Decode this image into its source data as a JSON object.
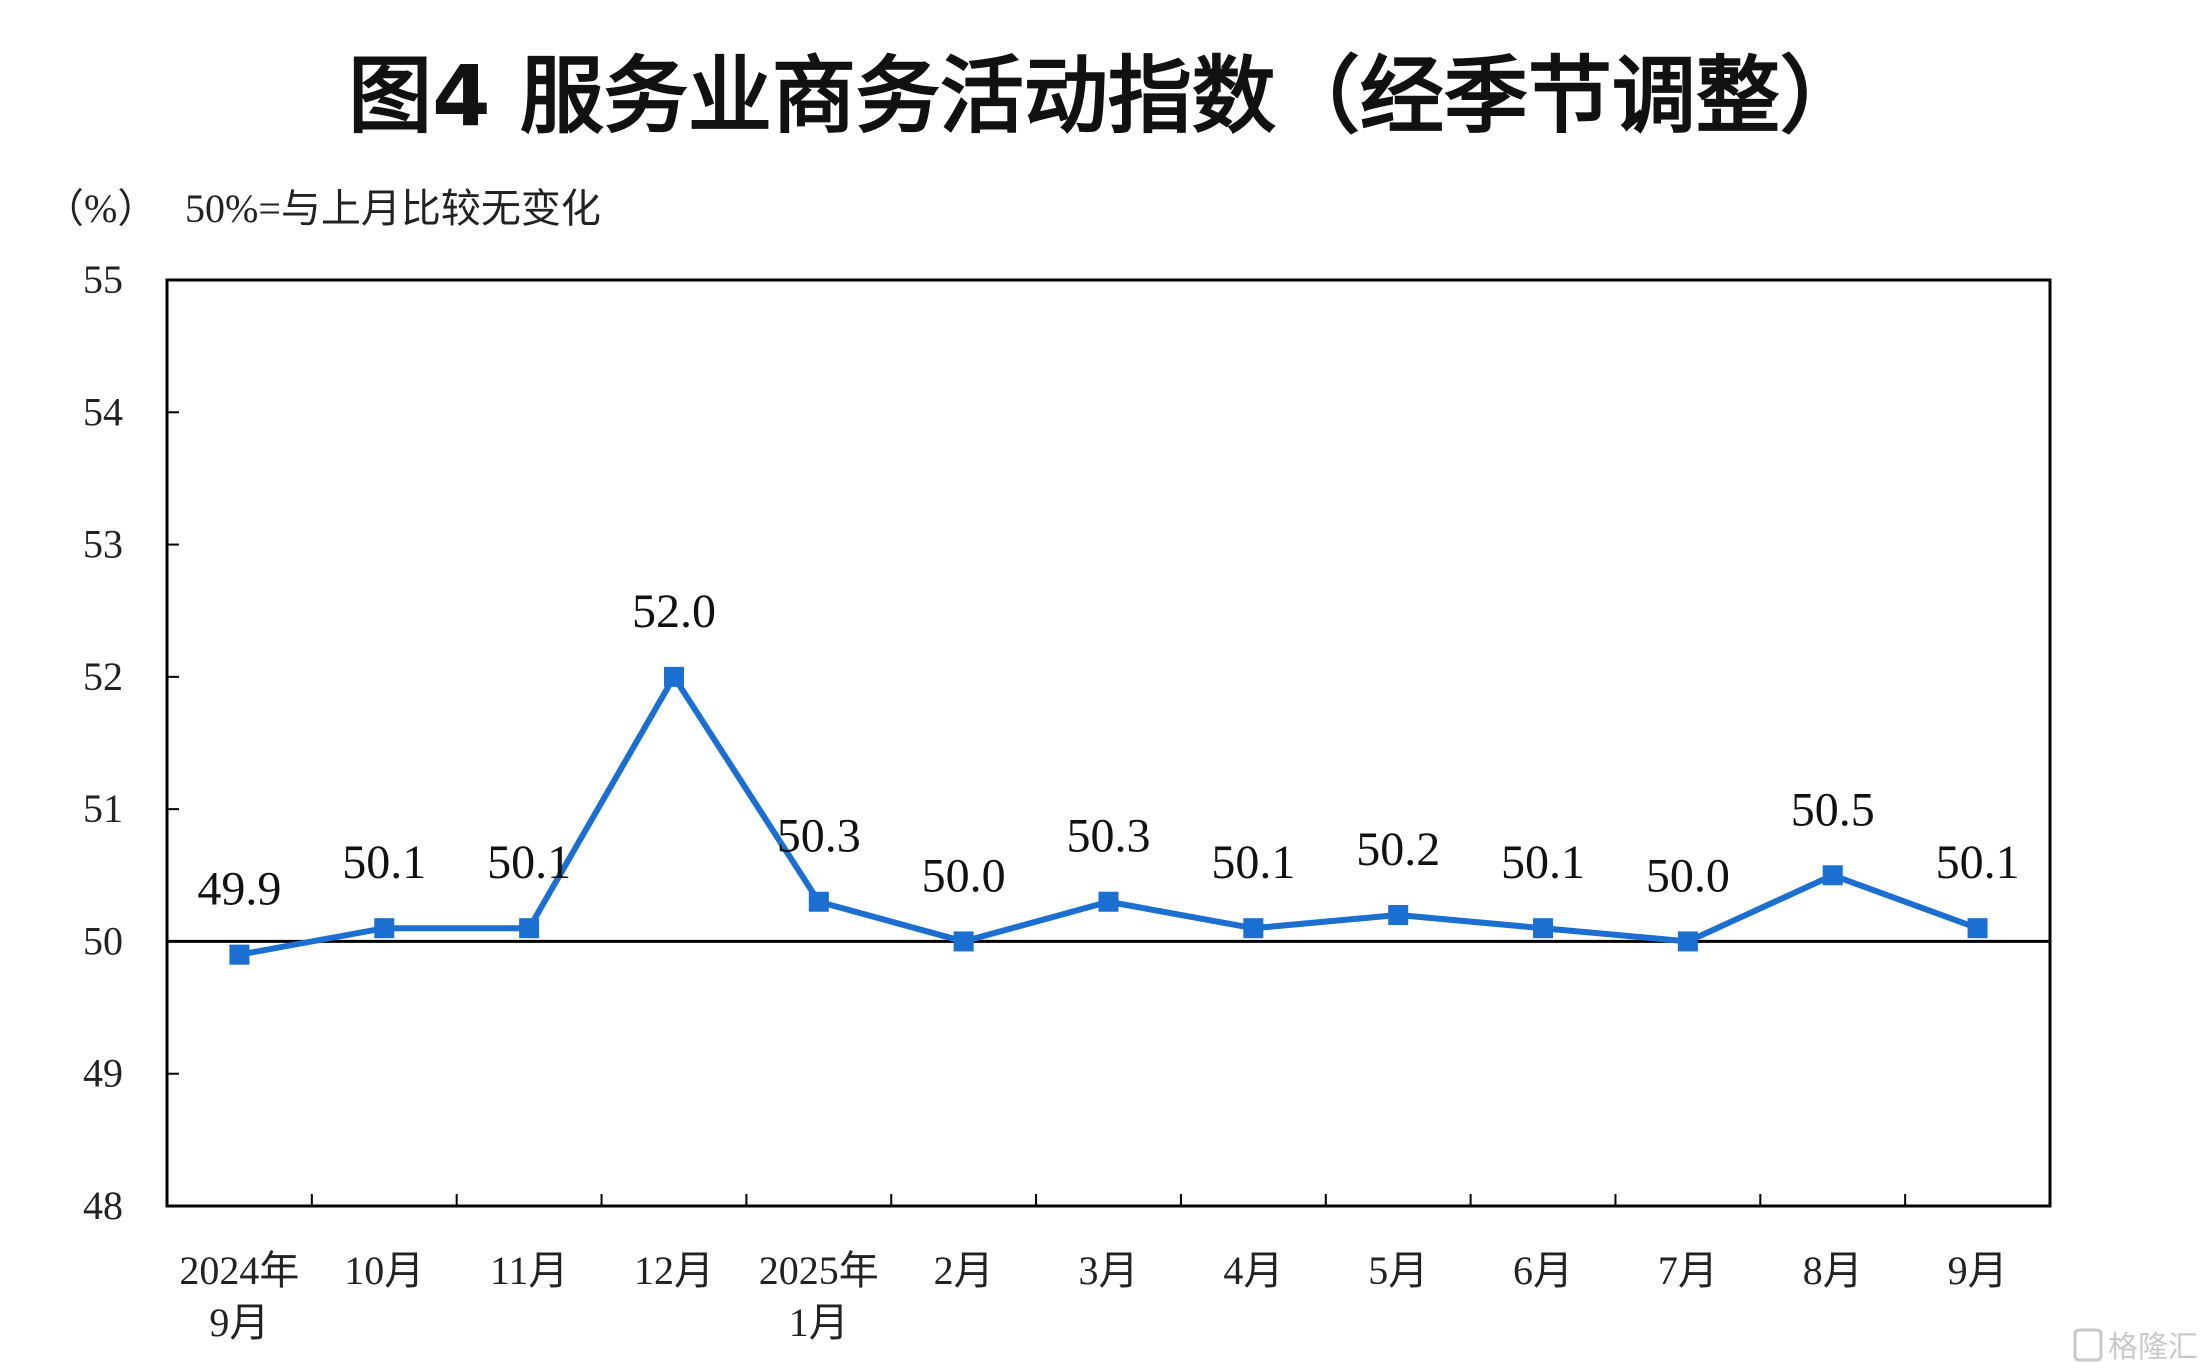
{
  "chart_data": {
    "type": "line",
    "title": "图4  服务业商务活动指数（经季节调整）",
    "unit_label": "（%）",
    "note": "50%=与上月比较无变化",
    "categories": [
      [
        "2024年",
        "9月"
      ],
      [
        "10月"
      ],
      [
        "11月"
      ],
      [
        "12月"
      ],
      [
        "2025年",
        "1月"
      ],
      [
        "2月"
      ],
      [
        "3月"
      ],
      [
        "4月"
      ],
      [
        "5月"
      ],
      [
        "6月"
      ],
      [
        "7月"
      ],
      [
        "8月"
      ],
      [
        "9月"
      ]
    ],
    "values": [
      49.9,
      50.1,
      50.1,
      52.0,
      50.3,
      50.0,
      50.3,
      50.1,
      50.2,
      50.1,
      50.0,
      50.5,
      50.1
    ],
    "value_labels": [
      "49.9",
      "50.1",
      "50.1",
      "52.0",
      "50.3",
      "50.0",
      "50.3",
      "50.1",
      "50.2",
      "50.1",
      "50.0",
      "50.5",
      "50.1"
    ],
    "ylim": [
      48,
      55
    ],
    "yticks": [
      "48",
      "49",
      "50",
      "51",
      "52",
      "53",
      "54",
      "55"
    ],
    "reference_line": 50,
    "line_color": "#1a6fd0",
    "marker": "square",
    "grid": false,
    "legend": "none"
  },
  "watermark": "格隆汇"
}
